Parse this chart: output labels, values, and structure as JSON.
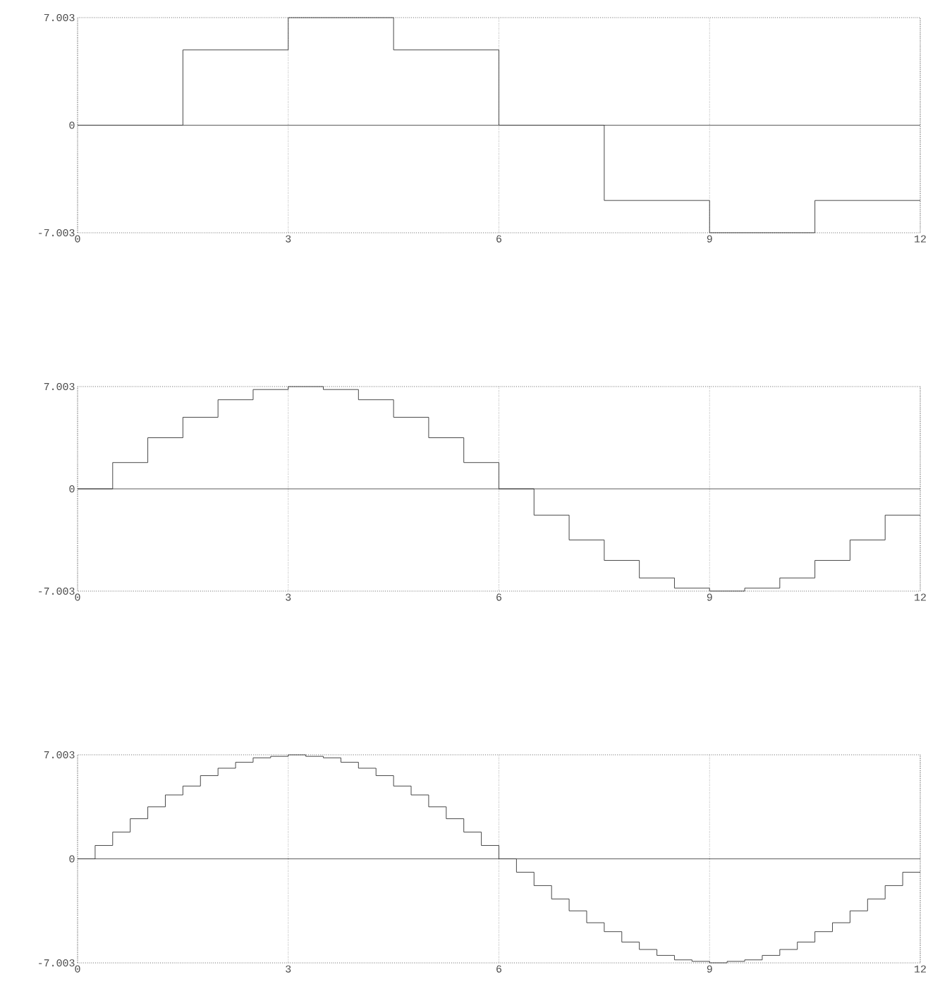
{
  "chart_data": [
    {
      "type": "step",
      "color": "#333333",
      "xlim": [
        0,
        12
      ],
      "ylim": [
        -7.003,
        7.003
      ],
      "xticks": [
        0,
        3,
        6,
        9,
        12
      ],
      "yticks": [
        -7.003,
        0,
        7.003
      ],
      "grid": "x",
      "ref_lines": [
        {
          "axis": "y",
          "value": 0
        }
      ],
      "x": [
        0,
        1.5,
        3,
        4.5,
        6,
        7.5,
        9,
        10.5,
        12
      ],
      "values": [
        0,
        4.9,
        7.0,
        4.9,
        0,
        -4.9,
        -7.0,
        -4.9,
        -4.9
      ]
    },
    {
      "type": "step",
      "color": "#333333",
      "xlim": [
        0,
        12
      ],
      "ylim": [
        -7.003,
        7.003
      ],
      "xticks": [
        0,
        3,
        6,
        9,
        12
      ],
      "yticks": [
        -7.003,
        0,
        7.003
      ],
      "grid": "x",
      "ref_lines": [
        {
          "axis": "y",
          "value": 0
        }
      ],
      "x": [
        0,
        0.5,
        1,
        1.5,
        2,
        2.5,
        3,
        3.5,
        4,
        4.5,
        5,
        5.5,
        6,
        6.5,
        7,
        7.5,
        8,
        8.5,
        9,
        9.5,
        10,
        10.5,
        11,
        11.5,
        12
      ],
      "values": [
        0,
        1.8,
        3.5,
        4.9,
        6.1,
        6.8,
        7.0,
        6.8,
        6.1,
        4.9,
        3.5,
        1.8,
        0,
        -1.8,
        -3.5,
        -4.9,
        -6.1,
        -6.8,
        -7.0,
        -6.8,
        -6.1,
        -4.9,
        -3.5,
        -1.8,
        -1.8
      ]
    },
    {
      "type": "step",
      "color": "#333333",
      "xlim": [
        0,
        12
      ],
      "ylim": [
        -7.003,
        7.003
      ],
      "xticks": [
        0,
        3,
        6,
        9,
        12
      ],
      "yticks": [
        -7.003,
        0,
        7.003
      ],
      "grid": "x",
      "ref_lines": [
        {
          "axis": "y",
          "value": 0
        }
      ],
      "x": [
        0,
        0.25,
        0.5,
        0.75,
        1,
        1.25,
        1.5,
        1.75,
        2,
        2.25,
        2.5,
        2.75,
        3,
        3.25,
        3.5,
        3.75,
        4,
        4.25,
        4.5,
        4.75,
        5,
        5.25,
        5.5,
        5.75,
        6,
        6.25,
        6.5,
        6.75,
        7,
        7.25,
        7.5,
        7.75,
        8,
        8.25,
        8.5,
        8.75,
        9,
        9.25,
        9.5,
        9.75,
        10,
        10.25,
        10.5,
        10.75,
        11,
        11.25,
        11.5,
        11.75,
        12
      ],
      "values": [
        0,
        0.9,
        1.8,
        2.7,
        3.5,
        4.3,
        4.9,
        5.6,
        6.1,
        6.5,
        6.8,
        6.9,
        7.0,
        6.9,
        6.8,
        6.5,
        6.1,
        5.6,
        4.9,
        4.3,
        3.5,
        2.7,
        1.8,
        0.9,
        0,
        -0.9,
        -1.8,
        -2.7,
        -3.5,
        -4.3,
        -4.9,
        -5.6,
        -6.1,
        -6.5,
        -6.8,
        -6.9,
        -7.0,
        -6.9,
        -6.8,
        -6.5,
        -6.1,
        -5.6,
        -4.9,
        -4.3,
        -3.5,
        -2.7,
        -1.8,
        -0.9,
        -0.9
      ]
    }
  ]
}
